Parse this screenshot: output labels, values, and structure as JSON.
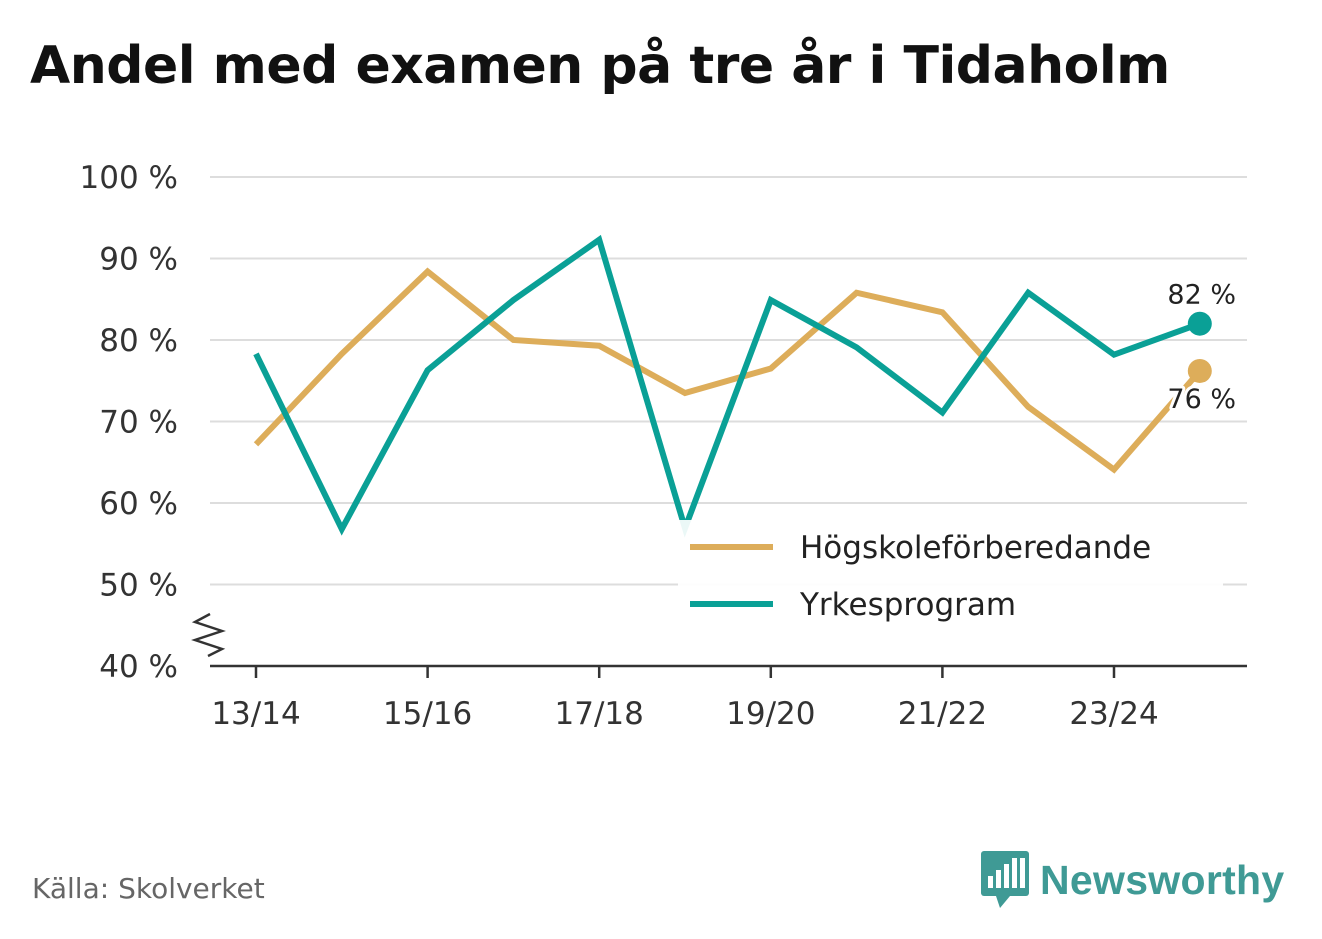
{
  "title": "Andel med examen på tre år i Tidaholm",
  "source": "Källa: Skolverket",
  "brand": "Newsworthy",
  "colors": {
    "series1": "#ddad5a",
    "series2": "#0aa096",
    "brand": "#3f9a95",
    "grid": "#dddddd",
    "axis": "#333333"
  },
  "chart_data": {
    "type": "line",
    "title": "Andel med examen på tre år i Tidaholm",
    "xlabel": "",
    "ylabel": "",
    "x": [
      "13/14",
      "14/15",
      "15/16",
      "16/17",
      "17/18",
      "18/19",
      "19/20",
      "20/21",
      "21/22",
      "22/23",
      "23/24",
      "24/25"
    ],
    "xticks": [
      "13/14",
      "15/16",
      "17/18",
      "19/20",
      "21/22",
      "23/24"
    ],
    "yticks": [
      40,
      50,
      60,
      70,
      80,
      90,
      100
    ],
    "ytick_labels": [
      "40 %",
      "50 %",
      "60 %",
      "70 %",
      "80 %",
      "90 %",
      "100 %"
    ],
    "ylim": [
      40,
      100
    ],
    "axis_break": true,
    "grid": true,
    "legend_position": "bottom-right",
    "series": [
      {
        "name": "Högskoleförberedande",
        "color": "#ddad5a",
        "values": [
          67.2,
          78.3,
          88.4,
          80.0,
          79.3,
          73.5,
          76.5,
          85.8,
          83.4,
          71.8,
          64.1,
          76.2
        ],
        "end_label": "76 %"
      },
      {
        "name": "Yrkesprogram",
        "color": "#0aa096",
        "values": [
          78.3,
          56.8,
          76.3,
          84.9,
          92.3,
          56.9,
          84.9,
          79.1,
          71.1,
          85.8,
          78.2,
          82.0
        ],
        "end_label": "82 %"
      }
    ]
  }
}
